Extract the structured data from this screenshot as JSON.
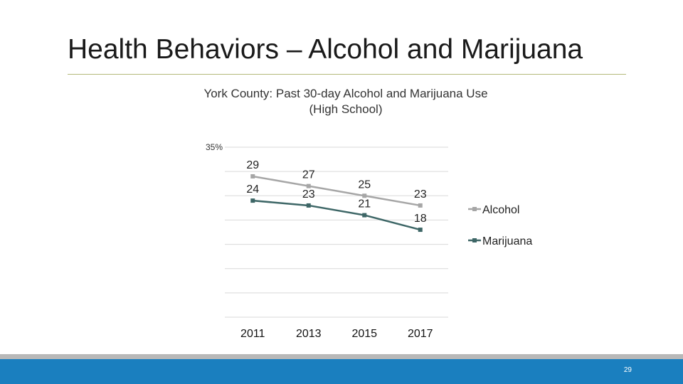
{
  "slide": {
    "title": "Health Behaviors – Alcohol and Marijuana",
    "page_number": "29"
  },
  "colors": {
    "alcohol": "#a6a6a6",
    "marijuana": "#3d6666",
    "gridline": "#d9d9d9",
    "title_rule": "#b3b97a",
    "footer": "#1a7fbf"
  },
  "chart_data": {
    "type": "line",
    "title": "York County: Past 30-day Alcohol and Marijuana Use (High School)",
    "categories": [
      "2011",
      "2013",
      "2015",
      "2017"
    ],
    "series": [
      {
        "name": "Alcohol",
        "values": [
          29,
          27,
          25,
          23
        ],
        "labels": [
          "29",
          "27",
          "25",
          "23"
        ]
      },
      {
        "name": "Marijuana",
        "values": [
          24,
          23,
          21,
          18
        ],
        "labels": [
          "24",
          "23",
          "21",
          "18"
        ]
      }
    ],
    "ylim": [
      0,
      35
    ],
    "yticks_shown": [
      "35%"
    ],
    "grid": true,
    "legend": "right",
    "xlabel": "",
    "ylabel": ""
  }
}
